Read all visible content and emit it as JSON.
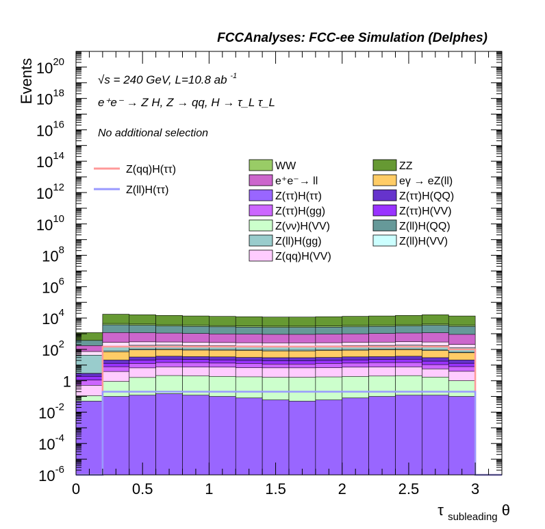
{
  "chart_data": {
    "type": "area",
    "title": "FCCAnalyses: FCC-ee Simulation (Delphes)",
    "xlabel": "τ_subleading θ",
    "xlabel_main": "τ",
    "xlabel_sub": "subleading",
    "xlabel_tail": " θ",
    "ylabel": "Events",
    "xlim": [
      0,
      3.2
    ],
    "ylim": [
      1e-06,
      1e+21
    ],
    "yscale": "log",
    "grid": false,
    "legend_placement": "top",
    "annotations": {
      "line1": "√s = 240 GeV, L=10.8 ab",
      "line1_sup": "-1",
      "line2": "e⁺e⁻ → Z H, Z → qq, H → τ_L τ_L",
      "line3": "No additional selection"
    },
    "x_ticks": [
      "0",
      "0.5",
      "1",
      "1.5",
      "2",
      "2.5",
      "3"
    ],
    "x_tick_values": [
      0,
      0.5,
      1,
      1.5,
      2,
      2.5,
      3
    ],
    "y_ticks": [
      {
        "base": "10",
        "exp": "-6",
        "value": 1e-06
      },
      {
        "base": "10",
        "exp": "-4",
        "value": 0.0001
      },
      {
        "base": "10",
        "exp": "-2",
        "value": 0.01
      },
      {
        "base": "1",
        "exp": "",
        "value": 1
      },
      {
        "base": "10",
        "exp": "2",
        "value": 100.0
      },
      {
        "base": "10",
        "exp": "4",
        "value": 10000.0
      },
      {
        "base": "10",
        "exp": "6",
        "value": 1000000.0
      },
      {
        "base": "10",
        "exp": "8",
        "value": 100000000.0
      },
      {
        "base": "10",
        "exp": "10",
        "value": 10000000000.0
      },
      {
        "base": "10",
        "exp": "12",
        "value": 1000000000000.0
      },
      {
        "base": "10",
        "exp": "14",
        "value": 100000000000000.0
      },
      {
        "base": "10",
        "exp": "16",
        "value": 1e+16
      },
      {
        "base": "10",
        "exp": "18",
        "value": 1e+18
      },
      {
        "base": "10",
        "exp": "20",
        "value": 1e+20
      }
    ],
    "bin_edges": [
      0,
      0.2,
      0.4,
      0.6,
      0.8,
      1.0,
      1.2,
      1.4,
      1.6,
      1.8,
      2.0,
      2.2,
      2.4,
      2.6,
      2.8,
      3.0
    ],
    "stack_bottom_first": [
      {
        "name": "Z(ττ)H(ττ)",
        "color": "#9966ff",
        "values": [
          0.05,
          0.1,
          0.12,
          0.15,
          0.12,
          0.1,
          0.08,
          0.06,
          0.05,
          0.06,
          0.08,
          0.1,
          0.12,
          0.12,
          0.1
        ]
      },
      {
        "name": "Z(νν)H(VV)",
        "color": "#ccffcc",
        "values": [
          0.06,
          0.8,
          1.5,
          2.0,
          1.9,
          1.8,
          1.7,
          1.6,
          1.6,
          1.7,
          1.8,
          1.9,
          2.0,
          1.6,
          0.9
        ]
      },
      {
        "name": "Z(qq)H(VV)",
        "color": "#ffccff",
        "values": [
          0.4,
          3,
          5,
          5.5,
          5.5,
          5.5,
          5,
          5,
          5,
          5,
          5.5,
          5.5,
          5.5,
          4,
          3
        ]
      },
      {
        "name": "Z(ττ)H(gg)",
        "color": "#cc66ff",
        "values": [
          0.6,
          4,
          6,
          7,
          7,
          6,
          6,
          5,
          5,
          6,
          6,
          7,
          7,
          5,
          4
        ]
      },
      {
        "name": "Z(ττ)H(VV)",
        "color": "#9933ff",
        "values": [
          0.8,
          5,
          8,
          9,
          8,
          8,
          7,
          7,
          7,
          7,
          8,
          8,
          9,
          7,
          5
        ]
      },
      {
        "name": "Z(ττ)H(QQ)",
        "color": "#6633cc",
        "values": [
          1,
          8,
          12,
          13,
          12,
          12,
          11,
          11,
          11,
          11,
          12,
          12,
          13,
          12,
          8
        ]
      },
      {
        "name": "eγ → eZ(ll)",
        "color": "#ffcc66",
        "values": [
          0,
          50,
          60,
          60,
          55,
          55,
          55,
          50,
          50,
          55,
          55,
          60,
          60,
          55,
          40
        ]
      },
      {
        "name": "Z(ll)H(VV)",
        "color": "#ccffff",
        "values": [
          0,
          10,
          10,
          10,
          10,
          10,
          10,
          10,
          10,
          10,
          10,
          10,
          10,
          10,
          5
        ]
      },
      {
        "name": "Z(ll)H(gg)",
        "color": "#99cccc",
        "values": [
          40,
          80,
          80,
          80,
          75,
          75,
          70,
          70,
          70,
          70,
          75,
          75,
          80,
          80,
          60
        ]
      },
      {
        "name": "Z(qq)H(ττ)",
        "color": "#ffe0ff",
        "values": [
          30,
          120,
          120,
          110,
          110,
          100,
          100,
          100,
          100,
          100,
          110,
          110,
          120,
          120,
          80
        ]
      },
      {
        "name": "e⁺e⁻→ ll",
        "color": "#cc66cc",
        "values": [
          100,
          900,
          850,
          800,
          750,
          700,
          680,
          650,
          650,
          680,
          700,
          750,
          800,
          850,
          700
        ]
      },
      {
        "name": "Z(ll)H(QQ)",
        "color": "#669999",
        "values": [
          200,
          2500,
          2300,
          2000,
          1900,
          1800,
          1700,
          1650,
          1650,
          1700,
          1800,
          1900,
          2000,
          2300,
          2000
        ]
      },
      {
        "name": "WW",
        "color": "#99cc66",
        "values": [
          0,
          800,
          700,
          600,
          600,
          500,
          500,
          500,
          500,
          500,
          600,
          600,
          600,
          700,
          600
        ]
      },
      {
        "name": "ZZ",
        "color": "#669933",
        "values": [
          800,
          13000,
          12000,
          11000,
          10000,
          9500,
          9000,
          8500,
          8500,
          9000,
          9500,
          10000,
          11000,
          12000,
          10000
        ]
      }
    ],
    "lines": [
      {
        "name": "Z(qq)H(ττ)",
        "color": "#ff9999",
        "values": [
          0,
          150,
          150,
          150,
          150,
          150,
          150,
          150,
          150,
          150,
          150,
          150,
          150,
          150,
          100
        ]
      },
      {
        "name": "Z(ll)H(ττ)",
        "color": "#9999ff",
        "values": [
          1e-06,
          0.2,
          0.2,
          0.2,
          0.2,
          0.2,
          0.2,
          0.2,
          0.2,
          0.2,
          0.2,
          0.2,
          0.2,
          0.2,
          0.2
        ]
      }
    ],
    "legend_lines": [
      {
        "label": "Z(qq)H(ττ)",
        "color": "#ff9999"
      },
      {
        "label": "Z(ll)H(ττ)",
        "color": "#9999ff"
      }
    ],
    "legend_fills": [
      {
        "label": "WW",
        "color": "#99cc66"
      },
      {
        "label": "ZZ",
        "color": "#669933"
      },
      {
        "label": "e⁺e⁻→ ll",
        "color": "#cc66cc"
      },
      {
        "label": "eγ → eZ(ll)",
        "color": "#ffcc66"
      },
      {
        "label": "Z(ττ)H(ττ)",
        "color": "#9966ff"
      },
      {
        "label": "Z(ττ)H(QQ)",
        "color": "#6633cc"
      },
      {
        "label": "Z(ττ)H(gg)",
        "color": "#cc66ff"
      },
      {
        "label": "Z(ττ)H(VV)",
        "color": "#9933ff"
      },
      {
        "label": "Z(νν)H(VV)",
        "color": "#ccffcc"
      },
      {
        "label": "Z(ll)H(QQ)",
        "color": "#669999"
      },
      {
        "label": "Z(ll)H(gg)",
        "color": "#99cccc"
      },
      {
        "label": "Z(ll)H(VV)",
        "color": "#ccffff"
      },
      {
        "label": "Z(qq)H(VV)",
        "color": "#ffccff"
      }
    ]
  }
}
